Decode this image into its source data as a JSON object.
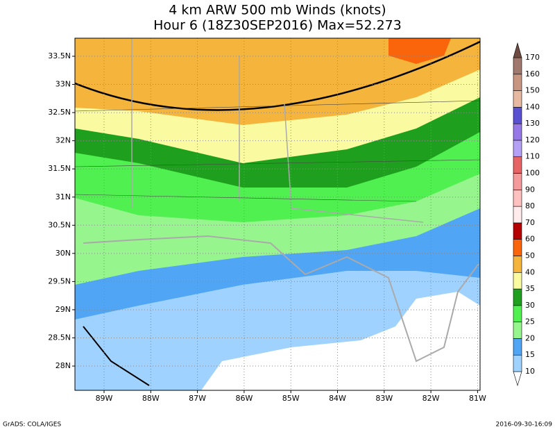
{
  "header": {
    "title": "4 km ARW 500 mb Winds (knots)",
    "subtitle": "Hour 6 (18Z30SEP2016) Max=52.273"
  },
  "map": {
    "lat_labels": [
      "33.5N",
      "33N",
      "32.5N",
      "32N",
      "31.5N",
      "31N",
      "30.5N",
      "30N",
      "29.5N",
      "29N",
      "28.5N",
      "28N"
    ],
    "lon_labels": [
      "89W",
      "88W",
      "87W",
      "86W",
      "85W",
      "84W",
      "83W",
      "82W",
      "81W"
    ]
  },
  "colorbar": {
    "levels": [
      10,
      15,
      20,
      25,
      30,
      35,
      40,
      50,
      60,
      70,
      80,
      90,
      100,
      110,
      120,
      130,
      140,
      150,
      160,
      170
    ],
    "colors": [
      "#ffffff",
      "#a0d2ff",
      "#50a5f5",
      "#96f58c",
      "#50f050",
      "#1ea01e",
      "#fafaa0",
      "#f5b43c",
      "#fa640a",
      "#b40000",
      "#ffebeb",
      "#ffc0c0",
      "#f59a9a",
      "#e66464",
      "#b4a0f5",
      "#9678e6",
      "#5a50d2",
      "#e6b9a0",
      "#c89680",
      "#a0786e",
      "#6e4b41"
    ]
  },
  "footer": {
    "left": "GrADS: COLA/IGES",
    "right": "2016-09-30-16:09"
  }
}
